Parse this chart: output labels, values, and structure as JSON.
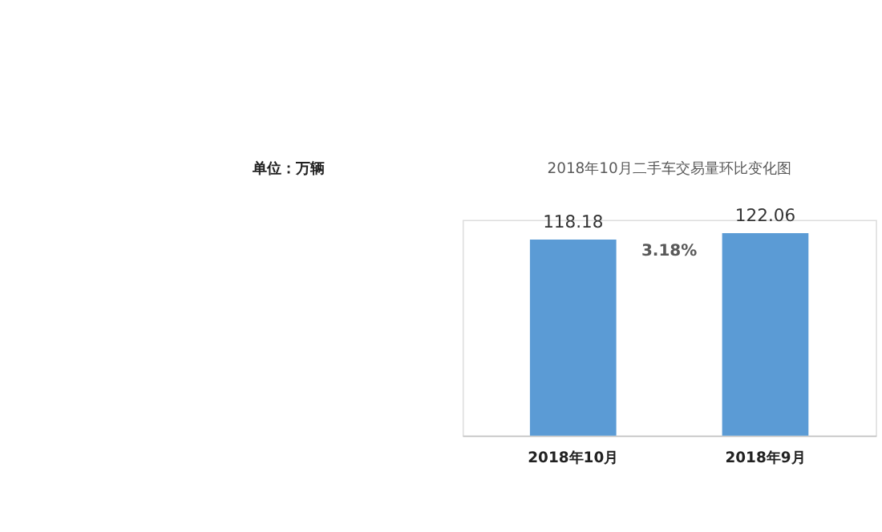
{
  "chart_data": {
    "type": "bar",
    "title": "2018年10月二手车交易量环比变化图",
    "categories": [
      "2018年10月",
      "2018年9月"
    ],
    "values": [
      118.18,
      122.06
    ],
    "color": "#5b9bd5",
    "data_labels": true,
    "grid": false,
    "annotations": [
      "单位：万辆",
      "3.18%"
    ]
  }
}
